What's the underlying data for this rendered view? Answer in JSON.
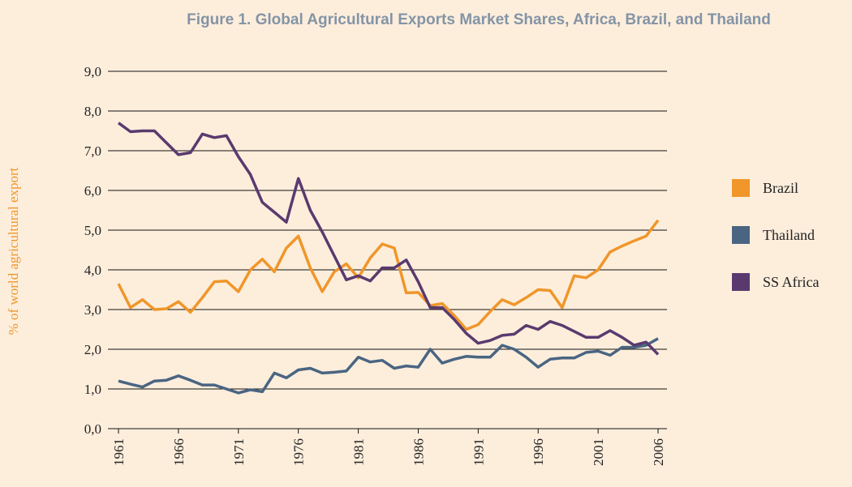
{
  "chart_data": {
    "type": "line",
    "title": "Figure 1. Global Agricultural Exports Market Shares, Africa, Brazil, and Thailand",
    "ylabel": "% of world agricultural export",
    "x": [
      1961,
      1962,
      1963,
      1964,
      1965,
      1966,
      1967,
      1968,
      1969,
      1970,
      1971,
      1972,
      1973,
      1974,
      1975,
      1976,
      1977,
      1978,
      1979,
      1980,
      1981,
      1982,
      1983,
      1984,
      1985,
      1986,
      1987,
      1988,
      1989,
      1990,
      1991,
      1992,
      1993,
      1994,
      1995,
      1996,
      1997,
      1998,
      1999,
      2000,
      2001,
      2002,
      2003,
      2004,
      2005,
      2006
    ],
    "xlim": [
      1961,
      2006
    ],
    "xticks": [
      1961,
      1966,
      1971,
      1976,
      1981,
      1986,
      1991,
      1996,
      2001,
      2006
    ],
    "ylim": [
      0,
      9
    ],
    "yticks": [
      {
        "value": 0,
        "label": "0,0"
      },
      {
        "value": 1,
        "label": "1,0"
      },
      {
        "value": 2,
        "label": "2,0"
      },
      {
        "value": 3,
        "label": "3,0"
      },
      {
        "value": 4,
        "label": "4,0"
      },
      {
        "value": 5,
        "label": "5,0"
      },
      {
        "value": 6,
        "label": "6,0"
      },
      {
        "value": 7,
        "label": "7,0"
      },
      {
        "value": 8,
        "label": "8,0"
      },
      {
        "value": 9,
        "label": "9,0"
      }
    ],
    "grid": true,
    "legend": "right",
    "series": [
      {
        "name": "Brazil",
        "color": "#f0962a",
        "values": [
          3.65,
          3.05,
          3.25,
          3.0,
          3.02,
          3.2,
          2.93,
          3.3,
          3.7,
          3.72,
          3.45,
          4.0,
          4.27,
          3.95,
          4.55,
          4.85,
          4.05,
          3.45,
          3.95,
          4.15,
          3.8,
          4.3,
          4.65,
          4.55,
          3.42,
          3.43,
          3.1,
          3.15,
          2.85,
          2.5,
          2.62,
          2.95,
          3.25,
          3.12,
          3.3,
          3.5,
          3.48,
          3.05,
          3.85,
          3.8,
          4.0,
          4.45,
          4.6,
          4.73,
          4.85,
          5.25
        ]
      },
      {
        "name": "Thailand",
        "color": "#4a6582",
        "values": [
          1.2,
          1.12,
          1.05,
          1.2,
          1.22,
          1.33,
          1.22,
          1.1,
          1.1,
          1.0,
          0.9,
          0.98,
          0.93,
          1.4,
          1.28,
          1.48,
          1.52,
          1.4,
          1.42,
          1.45,
          1.8,
          1.68,
          1.72,
          1.52,
          1.58,
          1.55,
          2.0,
          1.65,
          1.75,
          1.82,
          1.8,
          1.8,
          2.1,
          2.0,
          1.8,
          1.55,
          1.75,
          1.78,
          1.78,
          1.92,
          1.95,
          1.85,
          2.05,
          2.05,
          2.1,
          2.27
        ]
      },
      {
        "name": "SS Africa",
        "color": "#5a3a6e",
        "values": [
          7.7,
          7.48,
          7.5,
          7.5,
          7.2,
          6.9,
          6.95,
          7.42,
          7.33,
          7.38,
          6.85,
          6.4,
          5.7,
          5.45,
          5.2,
          6.3,
          5.5,
          4.95,
          4.35,
          3.75,
          3.85,
          3.72,
          4.05,
          4.05,
          4.25,
          3.7,
          3.05,
          3.05,
          2.75,
          2.4,
          2.15,
          2.22,
          2.35,
          2.38,
          2.6,
          2.5,
          2.7,
          2.6,
          2.45,
          2.3,
          2.3,
          2.47,
          2.3,
          2.1,
          2.18,
          1.87
        ]
      }
    ]
  }
}
